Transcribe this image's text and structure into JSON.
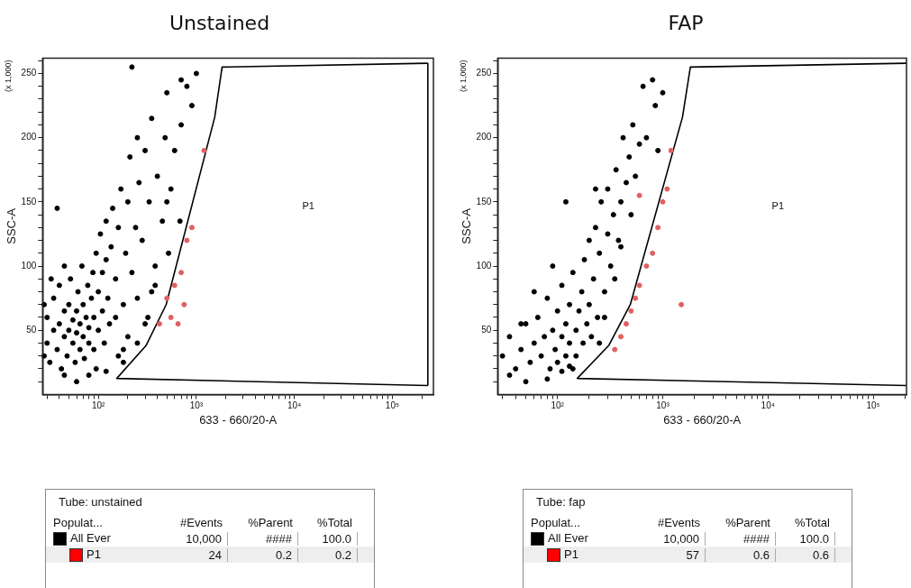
{
  "chart_data": [
    {
      "type": "scatter",
      "title": "Unstained",
      "xlabel": "633 - 660/20-A",
      "ylabel": "SSC-A",
      "log": "x",
      "grid": false,
      "legend": false,
      "marker": "circle",
      "xlim": [
        27,
        262144
      ],
      "ylim": [
        0,
        262
      ],
      "xticks": [
        {
          "value": 30,
          "label": null
        },
        {
          "value": 40,
          "label": null
        },
        {
          "value": 50,
          "label": null
        },
        {
          "value": 60,
          "label": null
        },
        {
          "value": 70,
          "label": null
        },
        {
          "value": 80,
          "label": null
        },
        {
          "value": 90,
          "label": null
        },
        {
          "value": 100,
          "label": "10²"
        },
        {
          "value": 200,
          "label": null
        },
        {
          "value": 300,
          "label": null
        },
        {
          "value": 400,
          "label": null
        },
        {
          "value": 500,
          "label": null
        },
        {
          "value": 600,
          "label": null
        },
        {
          "value": 700,
          "label": null
        },
        {
          "value": 800,
          "label": null
        },
        {
          "value": 900,
          "label": null
        },
        {
          "value": 1000,
          "label": "10³"
        },
        {
          "value": 2000,
          "label": null
        },
        {
          "value": 3000,
          "label": null
        },
        {
          "value": 4000,
          "label": null
        },
        {
          "value": 5000,
          "label": null
        },
        {
          "value": 6000,
          "label": null
        },
        {
          "value": 7000,
          "label": null
        },
        {
          "value": 8000,
          "label": null
        },
        {
          "value": 9000,
          "label": null
        },
        {
          "value": 10000,
          "label": "10⁴"
        },
        {
          "value": 20000,
          "label": null
        },
        {
          "value": 30000,
          "label": null
        },
        {
          "value": 40000,
          "label": null
        },
        {
          "value": 50000,
          "label": null
        },
        {
          "value": 60000,
          "label": null
        },
        {
          "value": 70000,
          "label": null
        },
        {
          "value": 80000,
          "label": null
        },
        {
          "value": 90000,
          "label": null
        },
        {
          "value": 100000,
          "label": "10⁵"
        },
        {
          "value": 200000,
          "label": null
        }
      ],
      "yticks": [
        {
          "value": 10,
          "label": null
        },
        {
          "value": 20,
          "label": null
        },
        {
          "value": 30,
          "label": null
        },
        {
          "value": 40,
          "label": null
        },
        50,
        {
          "value": 60,
          "label": null
        },
        {
          "value": 70,
          "label": null
        },
        {
          "value": 80,
          "label": null
        },
        {
          "value": 90,
          "label": null
        },
        100,
        {
          "value": 110,
          "label": null
        },
        {
          "value": 120,
          "label": null
        },
        {
          "value": 130,
          "label": null
        },
        {
          "value": 140,
          "label": null
        },
        150,
        {
          "value": 160,
          "label": null
        },
        {
          "value": 170,
          "label": null
        },
        {
          "value": 180,
          "label": null
        },
        {
          "value": 190,
          "label": null
        },
        200,
        {
          "value": 210,
          "label": null
        },
        {
          "value": 220,
          "label": null
        },
        {
          "value": 230,
          "label": null
        },
        {
          "value": 240,
          "label": null
        },
        250,
        {
          "value": 260,
          "label": null
        }
      ],
      "annotations": [
        "(x 1,000)",
        "P1"
      ],
      "series": [
        {
          "color": "#000000",
          "x": [
            30,
            30,
            32,
            35,
            35,
            38,
            40,
            40,
            42,
            45,
            45,
            48,
            50,
            50,
            52,
            55,
            55,
            58,
            60,
            60,
            62,
            65,
            65,
            68,
            70,
            70,
            72,
            75,
            78,
            80,
            80,
            85,
            88,
            90,
            90,
            95,
            100,
            100,
            105,
            110,
            110,
            115,
            120,
            120,
            125,
            130,
            135,
            140,
            150,
            160,
            170,
            180,
            190,
            200,
            210,
            220,
            240,
            250,
            260,
            280,
            300,
            320,
            330,
            350,
            380,
            400,
            380,
            450,
            480,
            500,
            520,
            550,
            600,
            680,
            700,
            800,
            900,
            1000,
            60,
            80,
            120,
            180,
            250,
            300,
            200,
            180,
            38,
            45,
            33,
            220,
            700,
            500,
            350,
            250,
            150,
            160,
            95,
            45,
            28,
            28
          ],
          "values": [
            40,
            60,
            25,
            50,
            75,
            35,
            55,
            85,
            20,
            45,
            65,
            30,
            50,
            70,
            90,
            40,
            58,
            25,
            48,
            65,
            80,
            35,
            55,
            100,
            45,
            70,
            28,
            60,
            85,
            40,
            52,
            75,
            95,
            35,
            60,
            110,
            50,
            80,
            125,
            65,
            95,
            40,
            105,
            135,
            75,
            55,
            115,
            145,
            90,
            130,
            160,
            70,
            110,
            150,
            185,
            95,
            130,
            200,
            165,
            120,
            190,
            60,
            150,
            215,
            100,
            170,
            85,
            135,
            200,
            235,
            110,
            160,
            190,
            135,
            210,
            240,
            225,
            250,
            10,
            15,
            18,
            25,
            40,
            55,
            45,
            35,
            145,
            100,
            90,
            255,
            245,
            150,
            80,
            75,
            60,
            30,
            20,
            15,
            30,
            70
          ]
        },
        {
          "color": "#e06060",
          "x": [
            650,
            600,
            700,
            800,
            900,
            500,
            420,
            1200,
            750,
            550
          ],
          "values": [
            55,
            85,
            95,
            120,
            130,
            75,
            55,
            190,
            70,
            60
          ]
        },
        {
          "type": "line",
          "marker": "none",
          "color": "#000000",
          "x": [
            230000,
            154,
            306,
            492,
            1540,
            1830,
            230000
          ],
          "values": [
            7,
            12.5,
            38,
            70,
            216,
            255,
            258
          ]
        },
        {
          "type": "line",
          "marker": "none",
          "color": "#000000",
          "x": [
            230000,
            230000
          ],
          "values": [
            7,
            258
          ]
        }
      ]
    },
    {
      "type": "scatter",
      "title": "FAP",
      "xlabel": "633 - 660/20-A",
      "ylabel": "SSC-A",
      "log": "x",
      "grid": false,
      "legend": false,
      "marker": "circle",
      "xlim": [
        27,
        207000
      ],
      "ylim": [
        0,
        262
      ],
      "xticks": [
        {
          "value": 30,
          "label": null
        },
        {
          "value": 40,
          "label": null
        },
        {
          "value": 50,
          "label": null
        },
        {
          "value": 60,
          "label": null
        },
        {
          "value": 70,
          "label": null
        },
        {
          "value": 80,
          "label": null
        },
        {
          "value": 90,
          "label": null
        },
        {
          "value": 100,
          "label": "10²"
        },
        {
          "value": 200,
          "label": null
        },
        {
          "value": 300,
          "label": null
        },
        {
          "value": 400,
          "label": null
        },
        {
          "value": 500,
          "label": null
        },
        {
          "value": 600,
          "label": null
        },
        {
          "value": 700,
          "label": null
        },
        {
          "value": 800,
          "label": null
        },
        {
          "value": 900,
          "label": null
        },
        {
          "value": 1000,
          "label": "10³"
        },
        {
          "value": 2000,
          "label": null
        },
        {
          "value": 3000,
          "label": null
        },
        {
          "value": 4000,
          "label": null
        },
        {
          "value": 5000,
          "label": null
        },
        {
          "value": 6000,
          "label": null
        },
        {
          "value": 7000,
          "label": null
        },
        {
          "value": 8000,
          "label": null
        },
        {
          "value": 9000,
          "label": null
        },
        {
          "value": 10000,
          "label": "10⁴"
        },
        {
          "value": 20000,
          "label": null
        },
        {
          "value": 30000,
          "label": null
        },
        {
          "value": 40000,
          "label": null
        },
        {
          "value": 50000,
          "label": null
        },
        {
          "value": 60000,
          "label": null
        },
        {
          "value": 70000,
          "label": null
        },
        {
          "value": 80000,
          "label": null
        },
        {
          "value": 90000,
          "label": null
        },
        {
          "value": 100000,
          "label": "10⁵"
        },
        {
          "value": 200000,
          "label": null
        }
      ],
      "yticks": [
        {
          "value": 10,
          "label": null
        },
        {
          "value": 20,
          "label": null
        },
        {
          "value": 30,
          "label": null
        },
        {
          "value": 40,
          "label": null
        },
        50,
        {
          "value": 60,
          "label": null
        },
        {
          "value": 70,
          "label": null
        },
        {
          "value": 80,
          "label": null
        },
        {
          "value": 90,
          "label": null
        },
        100,
        {
          "value": 110,
          "label": null
        },
        {
          "value": 120,
          "label": null
        },
        {
          "value": 130,
          "label": null
        },
        {
          "value": 140,
          "label": null
        },
        150,
        {
          "value": 160,
          "label": null
        },
        {
          "value": 170,
          "label": null
        },
        {
          "value": 180,
          "label": null
        },
        {
          "value": 190,
          "label": null
        },
        200,
        {
          "value": 210,
          "label": null
        },
        {
          "value": 220,
          "label": null
        },
        {
          "value": 230,
          "label": null
        },
        {
          "value": 240,
          "label": null
        },
        250,
        {
          "value": 260,
          "label": null
        }
      ],
      "annotations": [
        "(x 1,000)",
        "P1"
      ],
      "series": [
        {
          "color": "#000000",
          "x": [
            30,
            35,
            40,
            45,
            50,
            55,
            60,
            65,
            70,
            75,
            80,
            85,
            90,
            95,
            100,
            100,
            110,
            110,
            120,
            120,
            130,
            130,
            140,
            150,
            150,
            160,
            170,
            175,
            180,
            190,
            200,
            200,
            210,
            220,
            230,
            240,
            250,
            260,
            280,
            300,
            300,
            320,
            340,
            360,
            380,
            400,
            420,
            450,
            480,
            500,
            520,
            550,
            600,
            650,
            700,
            800,
            850,
            900,
            1000,
            60,
            45,
            90,
            120,
            230,
            35,
            50,
            80,
            130,
            110,
            250,
            350,
            400,
            280,
            140
          ],
          "values": [
            30,
            45,
            20,
            35,
            55,
            25,
            40,
            60,
            30,
            45,
            75,
            20,
            50,
            35,
            65,
            25,
            45,
            85,
            30,
            55,
            70,
            40,
            95,
            50,
            30,
            65,
            80,
            40,
            105,
            55,
            120,
            70,
            45,
            90,
            130,
            60,
            110,
            150,
            80,
            125,
            160,
            100,
            140,
            175,
            120,
            150,
            200,
            165,
            185,
            140,
            210,
            170,
            195,
            240,
            200,
            245,
            225,
            190,
            235,
            80,
            55,
            100,
            150,
            160,
            15,
            10,
            12,
            22,
            18,
            40,
            90,
            115,
            60,
            20
          ]
        },
        {
          "color": "#e06060",
          "x": [
            400,
            450,
            500,
            550,
            600,
            700,
            800,
            900,
            1000,
            1100,
            1500,
            600,
            350,
            1200
          ],
          "values": [
            45,
            55,
            65,
            75,
            85,
            100,
            110,
            130,
            150,
            160,
            70,
            155,
            35,
            190
          ]
        },
        {
          "type": "line",
          "marker": "none",
          "color": "#000000",
          "x": [
            207000,
            154,
            306,
            492,
            1540,
            1830,
            207000
          ],
          "values": [
            7,
            12.5,
            38,
            70,
            216,
            255,
            258
          ]
        }
      ]
    },
    {
      "type": "other",
      "colors": [
        "#000000",
        "#ff0000"
      ],
      "annotations": [
        "Tube:  unstained",
        "Populat...",
        "#Events",
        "%Parent",
        "%Total",
        "All Ever",
        "10,000",
        "####",
        "100.0",
        "P1",
        "24",
        "0.2",
        "0.2"
      ]
    },
    {
      "type": "other",
      "colors": [
        "#000000",
        "#ff0000"
      ],
      "annotations": [
        "Tube:  fap",
        "Populat...",
        "#Events",
        "%Parent",
        "%Total",
        "All Ever",
        "10,000",
        "####",
        "100.0",
        "P1",
        "57",
        "0.6",
        "0.6"
      ]
    }
  ]
}
